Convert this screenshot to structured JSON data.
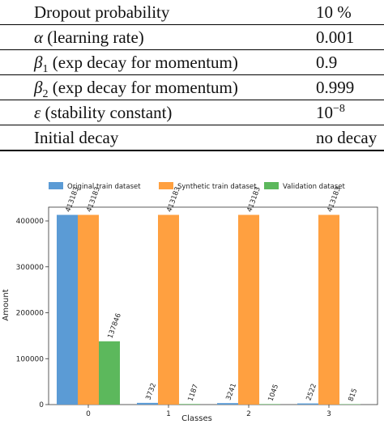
{
  "table": {
    "rows": [
      {
        "name_parts": [
          "Dropout probability"
        ],
        "value": "10 %"
      },
      {
        "name_parts": [
          "α",
          " (learning rate)"
        ],
        "value": "0.001"
      },
      {
        "name_parts": [
          "β",
          "1",
          " (exp decay for momentum)"
        ],
        "value": "0.9"
      },
      {
        "name_parts": [
          "β",
          "2",
          " (exp decay for momentum)"
        ],
        "value": "0.999"
      },
      {
        "name_parts": [
          "ε",
          " (stability constant)"
        ],
        "value_base": "10",
        "value_exp": "−8"
      },
      {
        "name_parts": [
          "Initial decay"
        ],
        "value": "no decay"
      }
    ]
  },
  "chart_data": {
    "type": "bar",
    "xlabel": "Classes",
    "ylabel": "Amount",
    "categories": [
      "0",
      "1",
      "2",
      "3"
    ],
    "ylim": [
      0,
      430000
    ],
    "yticks": [
      "0",
      "100000",
      "200000",
      "300000",
      "400000"
    ],
    "legend_placement": "top",
    "series": [
      {
        "name": "Original train dataset",
        "color": "#5b9bd5",
        "values": [
          413183,
          3732,
          3241,
          2522
        ],
        "labels": [
          "413183",
          "3732",
          "3241",
          "2522"
        ]
      },
      {
        "name": "Synthetic train dataset",
        "color": "#ffa040",
        "values": [
          413183,
          413183,
          413183,
          413183
        ],
        "labels": [
          "413183",
          "413183",
          "413183",
          "413183"
        ]
      },
      {
        "name": "Validation dataset",
        "color": "#5cb85c",
        "values": [
          137846,
          1187,
          1045,
          815
        ],
        "labels": [
          "137846",
          "1187",
          "1045",
          "815"
        ]
      }
    ]
  }
}
